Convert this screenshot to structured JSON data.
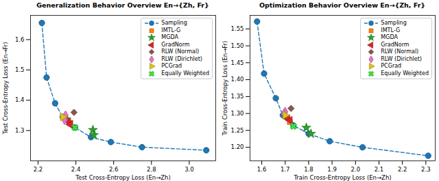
{
  "chart_data": [
    {
      "type": "scatter",
      "title": "Generalization Behavior Overview En→{Zh, Fr}",
      "x_label": "Test Cross-Entropy Loss (En→Zh)",
      "y_label": "Test Cross-Entropy Loss (En→Fr)",
      "xlim": [
        2.16,
        3.14
      ],
      "ylim": [
        1.2,
        1.68
      ],
      "xticks": [
        2.2,
        2.4,
        2.6,
        2.8,
        {
          "value": 3.0,
          "label": "3.0"
        }
      ],
      "yticks": [
        1.3,
        1.4,
        1.5,
        1.6
      ],
      "legend": "upper right",
      "series": [
        {
          "name": "Sampling",
          "type": "line",
          "color": "#1f77b4",
          "marker": "circle",
          "line_style": "dashed",
          "x": [
            2.22,
            2.245,
            2.29,
            2.33,
            2.395,
            2.48,
            2.585,
            2.75,
            3.09
          ],
          "values": [
            1.655,
            1.475,
            1.39,
            1.345,
            1.31,
            1.278,
            1.262,
            1.245,
            1.235
          ]
        },
        {
          "name": "IMTL-G",
          "type": "scatter",
          "color": "#ff7f0e",
          "marker": "square",
          "x": [
            2.37
          ],
          "values": [
            1.325
          ]
        },
        {
          "name": "MGDA",
          "type": "scatter",
          "color": "#2ca02c",
          "marker": "star",
          "x": [
            2.49,
            2.495
          ],
          "values": [
            1.302,
            1.285
          ]
        },
        {
          "name": "GradNorm",
          "type": "scatter",
          "color": "#d62728",
          "marker": "triangle_left",
          "x": [
            2.36,
            2.37
          ],
          "values": [
            1.33,
            1.32
          ]
        },
        {
          "name": "RLW (Normal)",
          "type": "scatter",
          "color": "#8c564b",
          "marker": "diamond",
          "x": [
            2.39,
            2.35
          ],
          "values": [
            1.36,
            1.34
          ]
        },
        {
          "name": "RLW (Dirichlet)",
          "type": "scatter",
          "color": "#e377c2",
          "marker": "thin_diamond",
          "x": [
            2.345,
            2.34
          ],
          "values": [
            1.35,
            1.335
          ]
        },
        {
          "name": "PCGrad",
          "type": "scatter",
          "color": "#dbc21e",
          "marker": "triangle_right",
          "x": [
            2.33
          ],
          "values": [
            1.345
          ]
        },
        {
          "name": "Equally Weighted",
          "type": "scatter",
          "color": "#3fe03f",
          "marker": "x",
          "x": [
            2.395
          ],
          "values": [
            1.31
          ]
        }
      ]
    },
    {
      "type": "scatter",
      "title": "Optimization Behavior Overview En→{Zh, Fr}",
      "x_label": "Train Cross-Entropy Loss (En→Zh)",
      "y_label": "Train Cross-Entropy Loss (En→Fr)",
      "xlim": [
        1.55,
        2.34
      ],
      "ylim": [
        1.16,
        1.59
      ],
      "xticks": [
        1.6,
        1.7,
        1.8,
        1.9,
        {
          "value": 2.0,
          "label": "2.0"
        },
        2.1,
        2.2,
        2.3
      ],
      "yticks": [
        {
          "value": 1.2,
          "label": "1.20"
        },
        1.25,
        {
          "value": 1.3,
          "label": "1.30"
        },
        1.35,
        {
          "value": 1.4,
          "label": "1.40"
        },
        1.45,
        {
          "value": 1.5,
          "label": "1.50"
        },
        1.55
      ],
      "legend": "upper right",
      "series": [
        {
          "name": "Sampling",
          "type": "line",
          "color": "#1f77b4",
          "marker": "circle",
          "line_style": "dashed",
          "x": [
            1.58,
            1.61,
            1.66,
            1.69,
            1.735,
            1.8,
            1.89,
            2.03,
            2.31
          ],
          "values": [
            1.572,
            1.418,
            1.345,
            1.295,
            1.265,
            1.24,
            1.218,
            1.2,
            1.175
          ]
        },
        {
          "name": "IMTL-G",
          "type": "scatter",
          "color": "#ff7f0e",
          "marker": "square",
          "x": [
            1.72
          ],
          "values": [
            1.275
          ]
        },
        {
          "name": "MGDA",
          "type": "scatter",
          "color": "#2ca02c",
          "marker": "star",
          "x": [
            1.79,
            1.81
          ],
          "values": [
            1.258,
            1.24
          ]
        },
        {
          "name": "GradNorm",
          "type": "scatter",
          "color": "#d62728",
          "marker": "triangle_left",
          "x": [
            1.71,
            1.72
          ],
          "values": [
            1.285,
            1.28
          ]
        },
        {
          "name": "RLW (Normal)",
          "type": "scatter",
          "color": "#8c564b",
          "marker": "diamond",
          "x": [
            1.725,
            1.7
          ],
          "values": [
            1.315,
            1.295
          ]
        },
        {
          "name": "RLW (Dirichlet)",
          "type": "scatter",
          "color": "#e377c2",
          "marker": "thin_diamond",
          "x": [
            1.7,
            1.695
          ],
          "values": [
            1.305,
            1.3
          ]
        },
        {
          "name": "PCGrad",
          "type": "scatter",
          "color": "#dbc21e",
          "marker": "triangle_right",
          "x": [
            1.7
          ],
          "values": [
            1.295
          ]
        },
        {
          "name": "Equally Weighted",
          "type": "scatter",
          "color": "#3fe03f",
          "marker": "x",
          "x": [
            1.735
          ],
          "values": [
            1.262
          ]
        }
      ]
    }
  ]
}
